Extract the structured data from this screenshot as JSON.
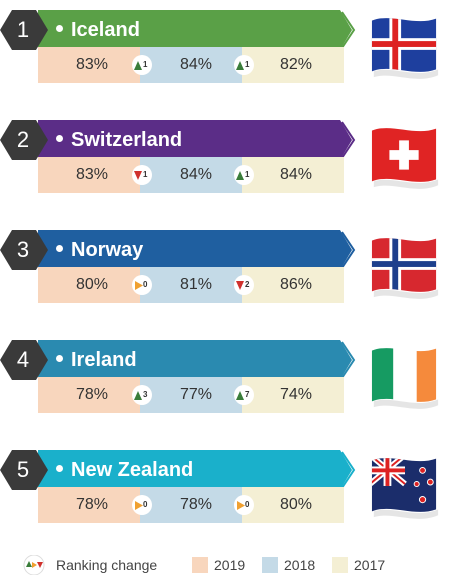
{
  "entries": [
    {
      "rank": "1",
      "country": "Iceland",
      "color": "#5aa047",
      "y2019": "83%",
      "c1": {
        "dir": "up",
        "n": "1"
      },
      "y2018": "84%",
      "c2": {
        "dir": "up",
        "n": "1"
      },
      "y2017": "82%",
      "flag": "iceland-flag"
    },
    {
      "rank": "2",
      "country": "Switzerland",
      "color": "#5b2d87",
      "y2019": "83%",
      "c1": {
        "dir": "down",
        "n": "1"
      },
      "y2018": "84%",
      "c2": {
        "dir": "up",
        "n": "1"
      },
      "y2017": "84%",
      "flag": "switzerland-flag"
    },
    {
      "rank": "3",
      "country": "Norway",
      "color": "#1f5fa0",
      "y2019": "80%",
      "c1": {
        "dir": "same",
        "n": "0"
      },
      "y2018": "81%",
      "c2": {
        "dir": "down",
        "n": "2"
      },
      "y2017": "86%",
      "flag": "norway-flag"
    },
    {
      "rank": "4",
      "country": "Ireland",
      "color": "#2a8ab0",
      "y2019": "78%",
      "c1": {
        "dir": "up",
        "n": "3"
      },
      "y2018": "77%",
      "c2": {
        "dir": "up",
        "n": "7"
      },
      "y2017": "74%",
      "flag": "ireland-flag"
    },
    {
      "rank": "5",
      "country": "New Zealand",
      "color": "#1ab0cb",
      "y2019": "78%",
      "c1": {
        "dir": "same",
        "n": "0"
      },
      "y2018": "78%",
      "c2": {
        "dir": "same",
        "n": "0"
      },
      "y2017": "80%",
      "flag": "new-zealand-flag"
    }
  ],
  "legend": {
    "change_label": "Ranking change",
    "y2019": "2019",
    "y2018": "2018",
    "y2017": "2017",
    "colors": {
      "y2019": "#f8d6bd",
      "y2018": "#c4dae7",
      "y2017": "#f4efd4"
    }
  },
  "colors": {
    "up": "#3a7d3a",
    "down": "#d0312d",
    "same": "#f0a030",
    "hex": "#3a3a3a"
  }
}
